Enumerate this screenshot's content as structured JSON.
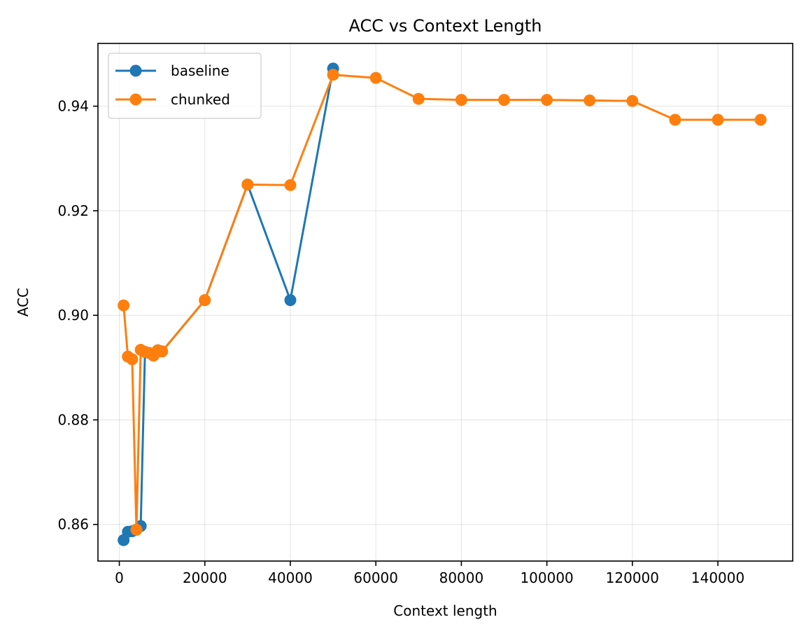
{
  "chart_data": {
    "type": "line",
    "title": "ACC vs Context Length",
    "xlabel": "Context length",
    "ylabel": "ACC",
    "xlim": [
      -5000,
      157500
    ],
    "ylim": [
      0.853,
      0.952
    ],
    "xticks": [
      0,
      20000,
      40000,
      60000,
      80000,
      100000,
      120000,
      140000
    ],
    "yticks": [
      0.86,
      0.88,
      0.9,
      0.92,
      0.94
    ],
    "ytick_labels": [
      "0.86",
      "0.88",
      "0.90",
      "0.92",
      "0.94"
    ],
    "grid": true,
    "legend_position": "top-left",
    "series": [
      {
        "name": "baseline",
        "color": "#1f77b4",
        "x": [
          1000,
          2000,
          3000,
          4000,
          5000,
          6000,
          7000,
          8000,
          9000,
          10000,
          20000,
          30000,
          40000,
          50000
        ],
        "y": [
          0.857,
          0.8586,
          0.8587,
          0.859,
          0.8597,
          0.893,
          0.8928,
          0.8923,
          0.8933,
          0.8931,
          0.9029,
          0.925,
          0.9029,
          0.9472
        ]
      },
      {
        "name": "chunked",
        "color": "#ff7f0e",
        "x": [
          1000,
          2000,
          3000,
          4000,
          5000,
          6000,
          7000,
          8000,
          9000,
          10000,
          20000,
          30000,
          40000,
          50000,
          60000,
          70000,
          80000,
          90000,
          100000,
          110000,
          120000,
          130000,
          140000,
          150000
        ],
        "y": [
          0.9019,
          0.8921,
          0.8916,
          0.859,
          0.8934,
          0.893,
          0.8928,
          0.8923,
          0.8933,
          0.8931,
          0.9029,
          0.925,
          0.9249,
          0.946,
          0.9454,
          0.9414,
          0.9412,
          0.9412,
          0.9412,
          0.9411,
          0.941,
          0.9374,
          0.9374,
          0.9374
        ]
      }
    ]
  }
}
